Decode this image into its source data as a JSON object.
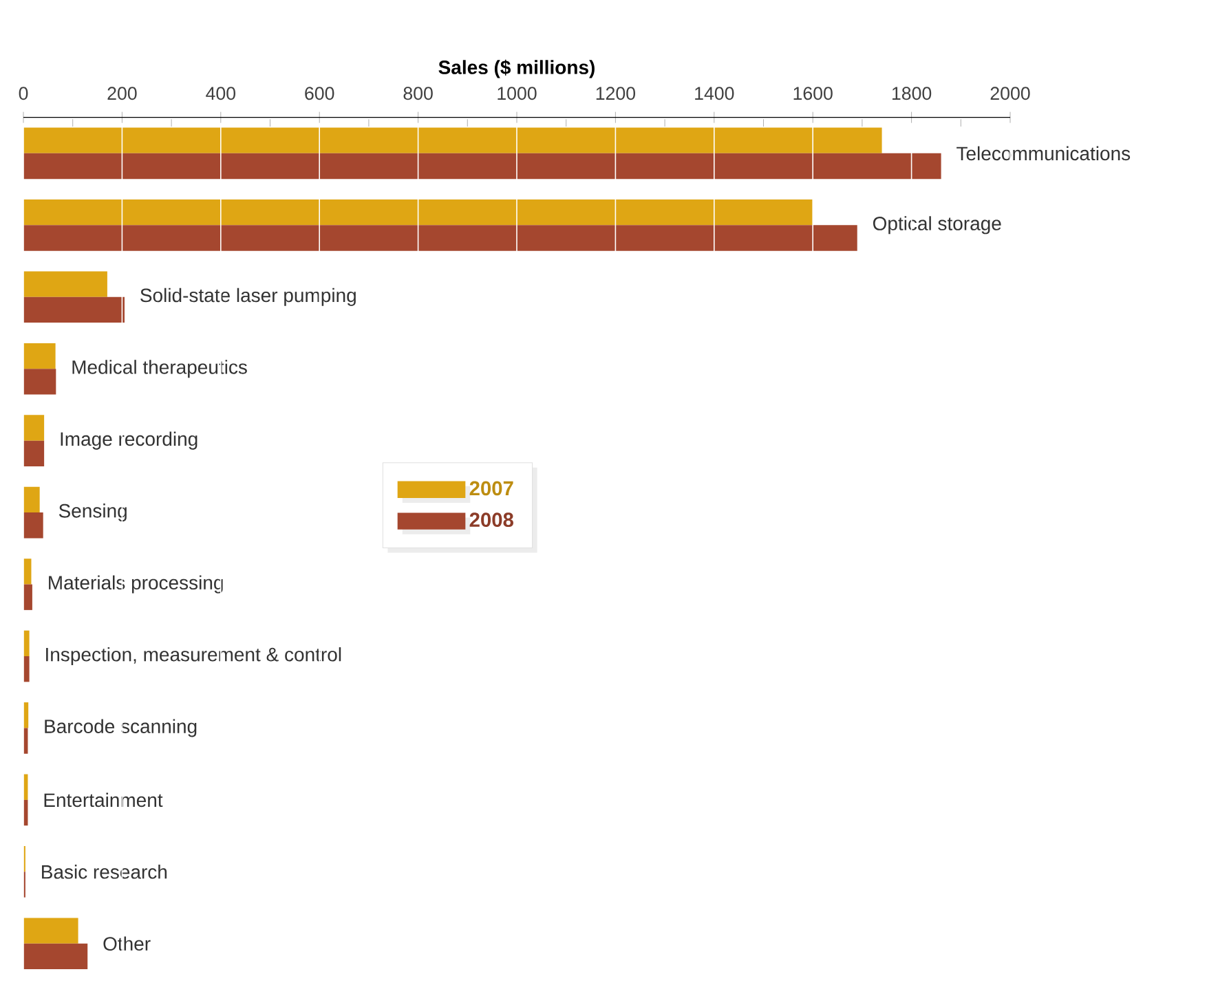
{
  "chart_data": {
    "type": "bar",
    "orientation": "horizontal",
    "xlabel": "Sales ($ millions)",
    "categories": [
      "Telecommunications",
      "Optical storage",
      "Solid-state laser pumping",
      "Medical therapeutics",
      "Image recording",
      "Sensing",
      "Materials processing",
      "Inspection, measurement & control",
      "Barcode scanning",
      "Entertainment",
      "Basic research",
      "Other"
    ],
    "series": [
      {
        "name": "2007",
        "color": "#dfa614",
        "values": [
          1740,
          1600,
          170,
          65,
          42,
          33,
          16,
          12,
          10,
          9,
          4,
          111
        ]
      },
      {
        "name": "2008",
        "color": "#a5472f",
        "values": [
          1860,
          1690,
          205,
          66,
          42,
          40,
          18,
          12,
          9,
          9,
          4,
          130
        ]
      }
    ],
    "xlim": [
      0,
      2000
    ],
    "xticks": [
      0,
      200,
      400,
      600,
      800,
      1000,
      1200,
      1400,
      1600,
      1800,
      2000
    ],
    "grid": "x",
    "legend": "center"
  }
}
